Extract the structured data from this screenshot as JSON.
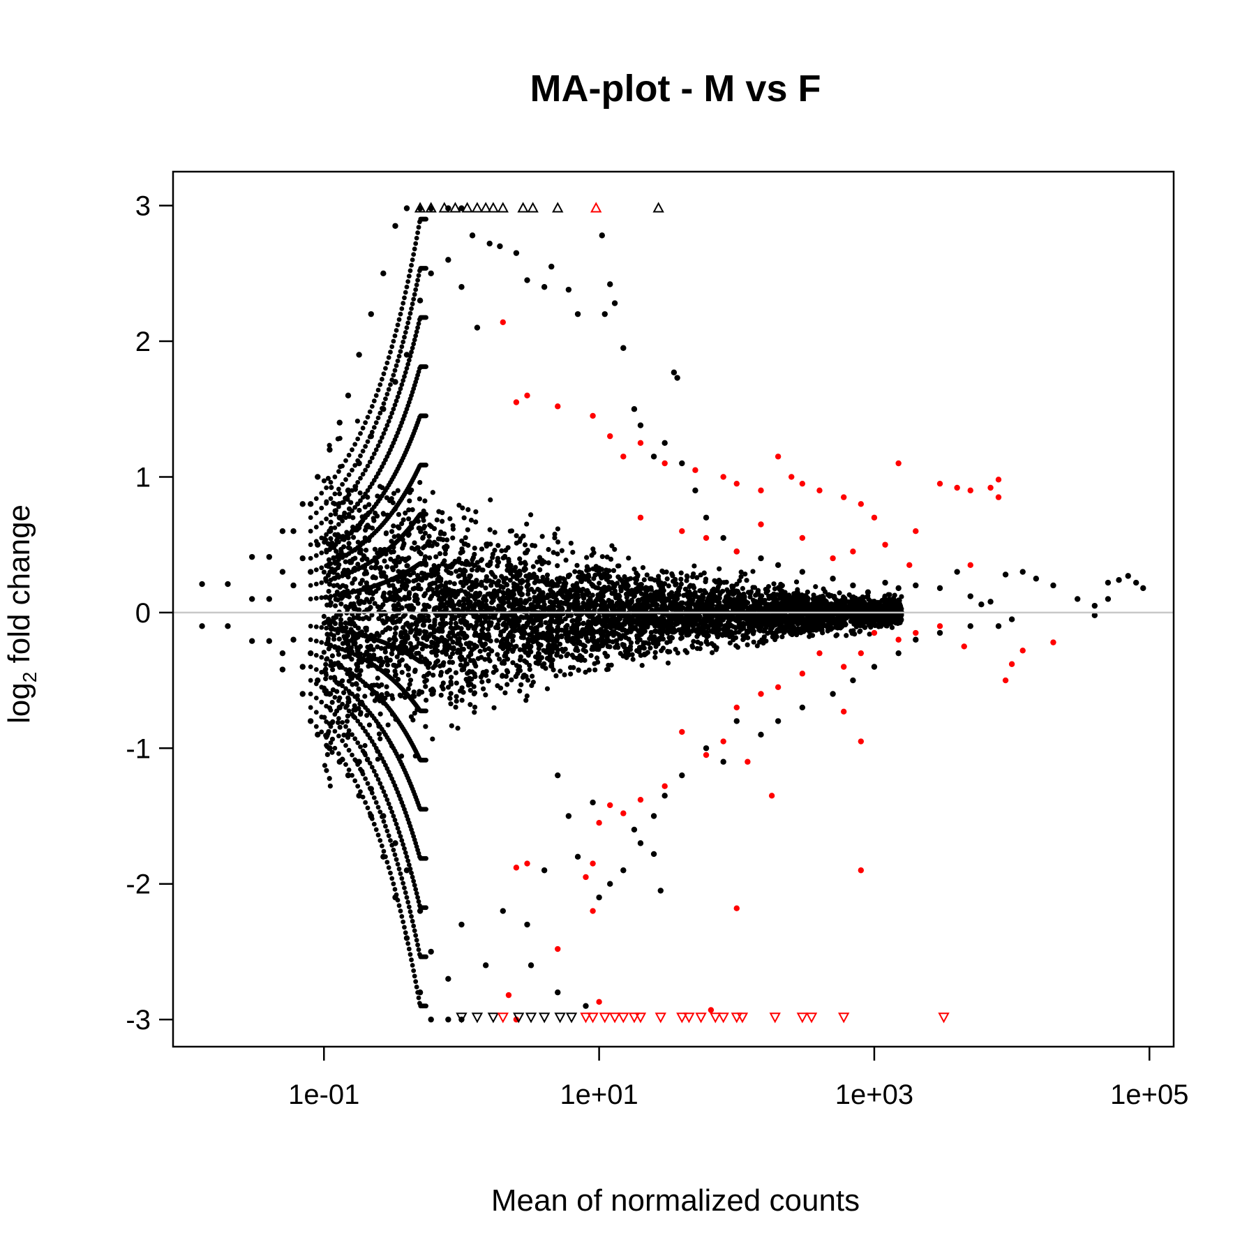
{
  "chart_data": {
    "type": "scatter",
    "title": "MA-plot - M vs F",
    "xlabel": "Mean of normalized counts",
    "ylabel_main": "log",
    "ylabel_sub": "2",
    "ylabel_rest": " fold change",
    "x_scale": "log10",
    "xlim": [
      0.008,
      150000
    ],
    "ylim": [
      -3.2,
      3.25
    ],
    "x_ticks": [
      {
        "value": 0.1,
        "label": "1e-01"
      },
      {
        "value": 10,
        "label": "1e+01"
      },
      {
        "value": 1000,
        "label": "1e+03"
      },
      {
        "value": 100000,
        "label": "1e+05"
      }
    ],
    "y_ticks": [
      {
        "value": 3,
        "label": "3"
      },
      {
        "value": 2,
        "label": "2"
      },
      {
        "value": 1,
        "label": "1"
      },
      {
        "value": 0,
        "label": "0"
      },
      {
        "value": -1,
        "label": "-1"
      },
      {
        "value": -2,
        "label": "-2"
      },
      {
        "value": -3,
        "label": "-3"
      }
    ],
    "reference_line": {
      "y": 0,
      "color": "#c8c8c8"
    },
    "grid": false,
    "legend": "none",
    "colors": {
      "not_significant": "#000000",
      "significant": "#ff0000"
    },
    "series": [
      {
        "key": "not_significant",
        "points": [
          [
            0.013,
            0.21
          ],
          [
            0.013,
            -0.1
          ],
          [
            0.02,
            0.21
          ],
          [
            0.02,
            -0.1
          ],
          [
            0.03,
            0.41
          ],
          [
            0.03,
            0.1
          ],
          [
            0.03,
            -0.21
          ],
          [
            0.04,
            0.41
          ],
          [
            0.04,
            0.1
          ],
          [
            0.04,
            -0.21
          ],
          [
            0.05,
            0.6
          ],
          [
            0.05,
            0.3
          ],
          [
            0.05,
            -0.3
          ],
          [
            0.05,
            -0.42
          ],
          [
            0.06,
            0.6
          ],
          [
            0.06,
            0.2
          ],
          [
            0.06,
            -0.2
          ],
          [
            0.07,
            0.8
          ],
          [
            0.07,
            0.4
          ],
          [
            0.07,
            -0.4
          ],
          [
            0.07,
            -0.6
          ],
          [
            0.08,
            0.8
          ],
          [
            0.08,
            0.3
          ],
          [
            0.08,
            -0.3
          ],
          [
            0.08,
            -0.8
          ],
          [
            0.09,
            1.0
          ],
          [
            0.09,
            0.5
          ],
          [
            0.09,
            -0.5
          ],
          [
            0.09,
            -0.9
          ],
          [
            0.11,
            1.2
          ],
          [
            0.11,
            0.6
          ],
          [
            0.11,
            -0.6
          ],
          [
            0.11,
            -1.0
          ],
          [
            0.13,
            1.4
          ],
          [
            0.13,
            0.7
          ],
          [
            0.13,
            -0.7
          ],
          [
            0.13,
            -1.1
          ],
          [
            0.15,
            1.6
          ],
          [
            0.15,
            0.9
          ],
          [
            0.15,
            -0.9
          ],
          [
            0.15,
            -1.2
          ],
          [
            0.18,
            1.9
          ],
          [
            0.18,
            1.1
          ],
          [
            0.18,
            -1.1
          ],
          [
            0.18,
            -1.35
          ],
          [
            0.22,
            2.2
          ],
          [
            0.22,
            1.3
          ],
          [
            0.22,
            -1.3
          ],
          [
            0.22,
            -1.5
          ],
          [
            0.27,
            2.5
          ],
          [
            0.27,
            1.5
          ],
          [
            0.27,
            -1.5
          ],
          [
            0.27,
            -1.8
          ],
          [
            0.33,
            2.85
          ],
          [
            0.33,
            1.7
          ],
          [
            0.33,
            -1.7
          ],
          [
            0.33,
            -2.1
          ],
          [
            0.4,
            2.98
          ],
          [
            0.4,
            1.9
          ],
          [
            0.4,
            -1.9
          ],
          [
            0.4,
            -2.4
          ],
          [
            0.5,
            2.98
          ],
          [
            0.5,
            2.3
          ],
          [
            0.5,
            -2.2
          ],
          [
            0.5,
            -2.8
          ],
          [
            0.6,
            2.98
          ],
          [
            0.6,
            2.5
          ],
          [
            0.6,
            -2.5
          ],
          [
            0.6,
            -3.0
          ],
          [
            0.8,
            2.98
          ],
          [
            0.8,
            2.6
          ],
          [
            0.8,
            -2.7
          ],
          [
            0.8,
            -3.0
          ],
          [
            1.0,
            2.98
          ],
          [
            1.0,
            2.4
          ],
          [
            1.0,
            -2.3
          ],
          [
            1.0,
            -3.0
          ],
          [
            1.2,
            2.78
          ],
          [
            1.3,
            2.1
          ],
          [
            1.5,
            -2.6
          ],
          [
            1.6,
            2.72
          ],
          [
            1.9,
            2.7
          ],
          [
            2.0,
            -2.2
          ],
          [
            2.5,
            2.65
          ],
          [
            3.0,
            2.45
          ],
          [
            3.2,
            -2.6
          ],
          [
            4.0,
            2.4
          ],
          [
            4.5,
            2.55
          ],
          [
            5.0,
            -2.8
          ],
          [
            6.0,
            2.38
          ],
          [
            7.0,
            2.2
          ],
          [
            8.0,
            -2.9
          ],
          [
            10.5,
            2.78
          ],
          [
            11,
            2.2
          ],
          [
            12,
            2.42
          ],
          [
            13,
            2.28
          ],
          [
            15,
            1.95
          ],
          [
            18,
            1.5
          ],
          [
            20,
            1.38
          ],
          [
            25,
            1.15
          ],
          [
            30,
            1.25
          ],
          [
            35,
            1.77
          ],
          [
            37,
            1.73
          ],
          [
            40,
            1.1
          ],
          [
            50,
            0.9
          ],
          [
            60,
            0.7
          ],
          [
            80,
            0.55
          ],
          [
            100,
            0.45
          ],
          [
            150,
            0.4
          ],
          [
            200,
            0.35
          ],
          [
            300,
            0.3
          ],
          [
            500,
            0.25
          ],
          [
            700,
            0.2
          ],
          [
            900,
            0.15
          ],
          [
            1200,
            0.22
          ],
          [
            1500,
            0.18
          ],
          [
            2000,
            0.2
          ],
          [
            3000,
            0.18
          ],
          [
            4000,
            0.3
          ],
          [
            5000,
            0.12
          ],
          [
            6000,
            0.06
          ],
          [
            7000,
            0.08
          ],
          [
            9000,
            0.28
          ],
          [
            12000,
            0.3
          ],
          [
            15000,
            0.25
          ],
          [
            20000,
            0.2
          ],
          [
            30000,
            0.1
          ],
          [
            40000,
            0.05
          ],
          [
            50000,
            0.22
          ],
          [
            60000,
            0.24
          ],
          [
            70000,
            0.27
          ],
          [
            80000,
            0.22
          ],
          [
            90000,
            0.18
          ],
          [
            50000,
            0.1
          ],
          [
            40000,
            -0.02
          ],
          [
            10000,
            -0.05
          ],
          [
            8000,
            -0.1
          ],
          [
            5000,
            -0.1
          ],
          [
            3000,
            -0.15
          ],
          [
            2000,
            -0.2
          ],
          [
            1500,
            -0.3
          ],
          [
            1000,
            -0.4
          ],
          [
            700,
            -0.5
          ],
          [
            500,
            -0.6
          ],
          [
            300,
            -0.7
          ],
          [
            200,
            -0.8
          ],
          [
            150,
            -0.9
          ],
          [
            100,
            -0.8
          ],
          [
            80,
            -1.1
          ],
          [
            60,
            -1.0
          ],
          [
            40,
            -1.2
          ],
          [
            30,
            -1.35
          ],
          [
            25,
            -1.5
          ],
          [
            20,
            -1.7
          ],
          [
            18,
            -1.6
          ],
          [
            15,
            -1.9
          ],
          [
            12,
            -2.0
          ],
          [
            10,
            -2.1
          ],
          [
            28,
            -2.05
          ],
          [
            25,
            -1.78
          ],
          [
            9,
            -1.4
          ],
          [
            7,
            -1.8
          ],
          [
            6,
            -1.5
          ],
          [
            5,
            -1.2
          ],
          [
            4,
            -1.9
          ],
          [
            3,
            -2.3
          ]
        ]
      },
      {
        "key": "significant",
        "points": [
          [
            2.0,
            2.14
          ],
          [
            2.5,
            1.55
          ],
          [
            3.0,
            1.6
          ],
          [
            5.0,
            1.52
          ],
          [
            9.0,
            1.45
          ],
          [
            12,
            1.3
          ],
          [
            15,
            1.15
          ],
          [
            20,
            1.25
          ],
          [
            30,
            1.1
          ],
          [
            50,
            1.05
          ],
          [
            80,
            1.0
          ],
          [
            100,
            0.95
          ],
          [
            150,
            0.9
          ],
          [
            200,
            1.15
          ],
          [
            250,
            1.0
          ],
          [
            300,
            0.95
          ],
          [
            400,
            0.9
          ],
          [
            600,
            0.85
          ],
          [
            800,
            0.8
          ],
          [
            1000,
            0.7
          ],
          [
            1500,
            1.1
          ],
          [
            2000,
            0.6
          ],
          [
            3000,
            0.95
          ],
          [
            4000,
            0.92
          ],
          [
            5000,
            0.9
          ],
          [
            7000,
            0.92
          ],
          [
            8000,
            0.98
          ],
          [
            8000,
            0.85
          ],
          [
            1200,
            0.5
          ],
          [
            1800,
            0.35
          ],
          [
            5000,
            0.35
          ],
          [
            20,
            0.7
          ],
          [
            40,
            0.6
          ],
          [
            60,
            0.55
          ],
          [
            100,
            0.45
          ],
          [
            150,
            0.65
          ],
          [
            300,
            0.55
          ],
          [
            500,
            0.4
          ],
          [
            700,
            0.45
          ],
          [
            1000,
            -0.15
          ],
          [
            1500,
            -0.2
          ],
          [
            2000,
            -0.15
          ],
          [
            3000,
            -0.1
          ],
          [
            4500,
            -0.25
          ],
          [
            12000,
            -0.28
          ],
          [
            10000,
            -0.38
          ],
          [
            9000,
            -0.5
          ],
          [
            20000,
            -0.22
          ],
          [
            800,
            -0.3
          ],
          [
            600,
            -0.4
          ],
          [
            400,
            -0.3
          ],
          [
            300,
            -0.45
          ],
          [
            200,
            -0.55
          ],
          [
            150,
            -0.6
          ],
          [
            100,
            -0.7
          ],
          [
            80,
            -0.95
          ],
          [
            60,
            -1.05
          ],
          [
            40,
            -0.88
          ],
          [
            30,
            -1.28
          ],
          [
            20,
            -1.38
          ],
          [
            15,
            -1.48
          ],
          [
            12,
            -1.42
          ],
          [
            10,
            -1.55
          ],
          [
            9,
            -1.85
          ],
          [
            800,
            -0.95
          ],
          [
            120,
            -1.1
          ],
          [
            180,
            -1.35
          ],
          [
            800,
            -1.9
          ],
          [
            5,
            -2.48
          ],
          [
            3,
            -1.85
          ],
          [
            2.5,
            -1.88
          ],
          [
            2.2,
            -2.82
          ],
          [
            2.5,
            -3.0
          ],
          [
            9,
            -2.2
          ],
          [
            8,
            -1.95
          ],
          [
            100,
            -2.18
          ],
          [
            10,
            -2.87
          ],
          [
            65,
            -2.93
          ],
          [
            600,
            -0.73
          ]
        ]
      }
    ],
    "capped_up": [
      {
        "x": 0.5,
        "n": 1,
        "color": "#000000"
      },
      {
        "x": 0.6,
        "n": 1,
        "color": "#000000"
      },
      {
        "x": 0.75,
        "n": 1,
        "color": "#000000"
      },
      {
        "x": 0.9,
        "n": 1,
        "color": "#000000"
      },
      {
        "x": 1.1,
        "n": 1,
        "color": "#000000"
      },
      {
        "x": 1.3,
        "n": 1,
        "color": "#000000"
      },
      {
        "x": 1.5,
        "n": 1,
        "color": "#000000"
      },
      {
        "x": 1.7,
        "n": 1,
        "color": "#000000"
      },
      {
        "x": 2.0,
        "n": 1,
        "color": "#000000"
      },
      {
        "x": 2.8,
        "n": 1,
        "color": "#000000"
      },
      {
        "x": 3.3,
        "n": 1,
        "color": "#000000"
      },
      {
        "x": 5.0,
        "n": 1,
        "color": "#000000"
      },
      {
        "x": 9.5,
        "n": 1,
        "color": "#ff0000"
      },
      {
        "x": 27,
        "n": 1,
        "color": "#000000"
      }
    ],
    "capped_down": [
      {
        "x": 1.0,
        "n": 1,
        "color": "#000000"
      },
      {
        "x": 1.3,
        "n": 1,
        "color": "#000000"
      },
      {
        "x": 1.7,
        "n": 1,
        "color": "#000000"
      },
      {
        "x": 2.0,
        "n": 1,
        "color": "#ff0000"
      },
      {
        "x": 2.6,
        "n": 1,
        "color": "#000000"
      },
      {
        "x": 3.2,
        "n": 1,
        "color": "#000000"
      },
      {
        "x": 4.0,
        "n": 1,
        "color": "#000000"
      },
      {
        "x": 5.2,
        "n": 1,
        "color": "#000000"
      },
      {
        "x": 6.3,
        "n": 1,
        "color": "#000000"
      },
      {
        "x": 8.0,
        "n": 1,
        "color": "#ff0000"
      },
      {
        "x": 9.0,
        "n": 1,
        "color": "#ff0000"
      },
      {
        "x": 11,
        "n": 1,
        "color": "#ff0000"
      },
      {
        "x": 13,
        "n": 1,
        "color": "#ff0000"
      },
      {
        "x": 15,
        "n": 1,
        "color": "#ff0000"
      },
      {
        "x": 18,
        "n": 1,
        "color": "#ff0000"
      },
      {
        "x": 20,
        "n": 1,
        "color": "#ff0000"
      },
      {
        "x": 28,
        "n": 1,
        "color": "#ff0000"
      },
      {
        "x": 40,
        "n": 1,
        "color": "#ff0000"
      },
      {
        "x": 45,
        "n": 1,
        "color": "#ff0000"
      },
      {
        "x": 55,
        "n": 1,
        "color": "#ff0000"
      },
      {
        "x": 70,
        "n": 1,
        "color": "#ff0000"
      },
      {
        "x": 80,
        "n": 1,
        "color": "#ff0000"
      },
      {
        "x": 100,
        "n": 1,
        "color": "#ff0000"
      },
      {
        "x": 110,
        "n": 1,
        "color": "#ff0000"
      },
      {
        "x": 190,
        "n": 1,
        "color": "#ff0000"
      },
      {
        "x": 300,
        "n": 1,
        "color": "#ff0000"
      },
      {
        "x": 350,
        "n": 1,
        "color": "#ff0000"
      },
      {
        "x": 600,
        "n": 1,
        "color": "#ff0000"
      },
      {
        "x": 3200,
        "n": 1,
        "color": "#ff0000"
      }
    ]
  }
}
